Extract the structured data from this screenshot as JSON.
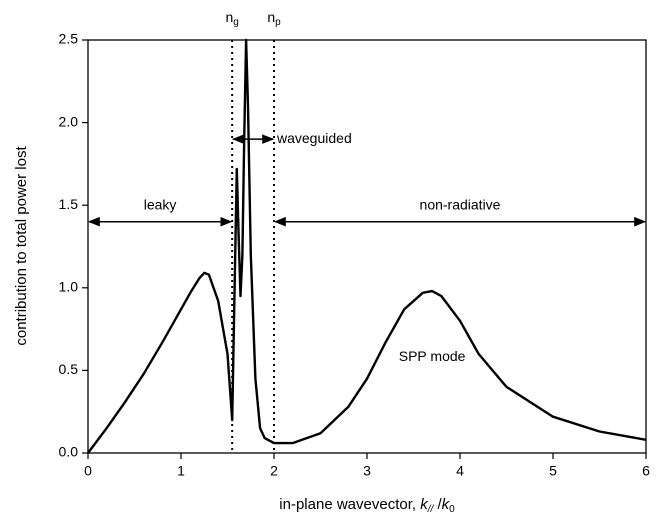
{
  "chart_data": {
    "type": "line",
    "xlabel": {
      "prefix": "in-plane wavevector, ",
      "k1": "k",
      "sub1": "//",
      "sep": " /",
      "k2": "k",
      "sub2": "0"
    },
    "ylabel": "contribution to total power lost",
    "x": [
      0,
      0.2,
      0.4,
      0.6,
      0.8,
      1.0,
      1.1,
      1.2,
      1.25,
      1.3,
      1.4,
      1.5,
      1.55,
      1.57,
      1.6,
      1.62,
      1.64,
      1.66,
      1.68,
      1.7,
      1.72,
      1.75,
      1.8,
      1.85,
      1.9,
      2.0,
      2.2,
      2.5,
      2.8,
      3.0,
      3.2,
      3.4,
      3.6,
      3.7,
      3.8,
      4.0,
      4.2,
      4.5,
      5.0,
      5.5,
      6.0
    ],
    "series": [
      {
        "color": "#000000",
        "values": [
          0,
          0.15,
          0.31,
          0.48,
          0.67,
          0.87,
          0.97,
          1.06,
          1.09,
          1.08,
          0.92,
          0.6,
          0.2,
          0.8,
          1.72,
          1.3,
          0.95,
          1.2,
          1.9,
          2.5,
          2.1,
          1.2,
          0.45,
          0.15,
          0.09,
          0.06,
          0.06,
          0.12,
          0.28,
          0.45,
          0.67,
          0.87,
          0.97,
          0.98,
          0.95,
          0.8,
          0.6,
          0.4,
          0.22,
          0.13,
          0.08
        ]
      }
    ],
    "xlim": [
      0,
      6
    ],
    "ylim": [
      0,
      2.5
    ],
    "xticks": [
      0,
      1,
      2,
      3,
      4,
      5,
      6
    ],
    "yticks": [
      {
        "value": 0,
        "label": "0.0"
      },
      {
        "value": 0.5,
        "label": "0.5"
      },
      {
        "value": 1,
        "label": "1.0"
      },
      {
        "value": 1.5,
        "label": "1.5"
      },
      {
        "value": 2,
        "label": "2.0"
      },
      {
        "value": 2.5,
        "label": "2.5"
      }
    ],
    "vlines": [
      {
        "x": 1.55,
        "label": "n",
        "sub": "g"
      },
      {
        "x": 2.0,
        "label": "n",
        "sub": "p"
      }
    ],
    "arrows": [
      {
        "x1": 0,
        "x2": 1.55,
        "y": 1.4,
        "label": "leaky",
        "label_side": "above"
      },
      {
        "x1": 1.55,
        "x2": 2.0,
        "y": 1.9,
        "label": "waveguided",
        "label_side": "right"
      },
      {
        "x1": 2.0,
        "x2": 6,
        "y": 1.4,
        "label": "non-radiative",
        "label_side": "above"
      }
    ],
    "annotations": [
      {
        "text": "SPP mode",
        "x": 3.7,
        "y": 0.58
      }
    ]
  }
}
